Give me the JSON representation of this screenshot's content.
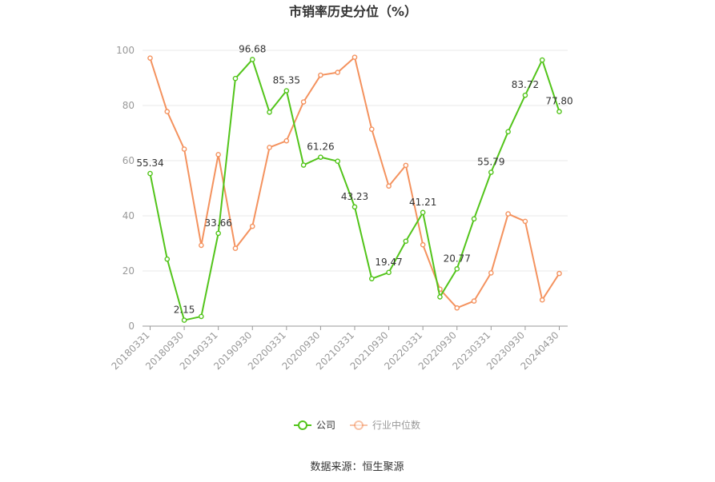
{
  "chart_data": {
    "type": "line",
    "title": "市销率历史分位（%）",
    "xlabel": "",
    "ylabel": "",
    "ylim": [
      0,
      100
    ],
    "yticks": [
      0,
      20,
      40,
      60,
      80,
      100
    ],
    "x": [
      "20180331",
      "20180630",
      "20180930",
      "20181231",
      "20190331",
      "20190630",
      "20190930",
      "20191231",
      "20200331",
      "20200630",
      "20200930",
      "20201231",
      "20210331",
      "20210630",
      "20210930",
      "20211231",
      "20220331",
      "20220630",
      "20220930",
      "20221231",
      "20230331",
      "20230630",
      "20230930",
      "20231231",
      "20240430"
    ],
    "xtick_labels": [
      "20180331",
      "20180930",
      "20190331",
      "20190930",
      "20200331",
      "20200930",
      "20210331",
      "20210930",
      "20220331",
      "20220930",
      "20230331",
      "20230930",
      "20240430"
    ],
    "legend_position": "bottom",
    "grid": true,
    "series": [
      {
        "name": "公司",
        "color": "#52c41a",
        "values": [
          55.34,
          24.3,
          2.15,
          3.5,
          33.66,
          89.8,
          96.68,
          77.6,
          85.35,
          58.4,
          61.26,
          59.8,
          43.23,
          17.2,
          19.47,
          30.8,
          41.21,
          10.6,
          20.77,
          38.9,
          55.79,
          70.5,
          83.72,
          96.5,
          77.8
        ],
        "data_labels": {
          "0": "55.34",
          "2": "2.15",
          "4": "33.66",
          "6": "96.68",
          "8": "85.35",
          "10": "61.26",
          "12": "43.23",
          "14": "19.47",
          "16": "41.21",
          "18": "20.77",
          "20": "55.79",
          "22": "83.72",
          "24": "77.80"
        }
      },
      {
        "name": "行业中位数",
        "color": "#f4925e",
        "values": [
          97.2,
          77.8,
          64.2,
          29.3,
          62.2,
          28.2,
          36.2,
          64.8,
          67.2,
          81.3,
          91.0,
          92.0,
          97.5,
          71.4,
          50.8,
          58.3,
          29.5,
          13.4,
          6.6,
          9.1,
          19.3,
          40.7,
          38.0,
          9.5,
          19.1
        ]
      }
    ]
  },
  "source_text": "数据来源：恒生聚源"
}
